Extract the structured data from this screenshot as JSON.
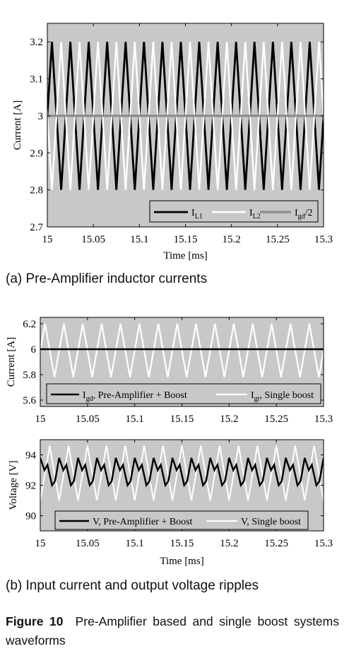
{
  "figure": {
    "label": "Figure 10",
    "caption": "Pre-Amplifier based and single boost systems waveforms"
  },
  "colors": {
    "plot_bg": "#c8c8c8",
    "series_dark": "#000000",
    "series_white": "#ffffff",
    "series_gray": "#8c8c8c"
  },
  "chart_data": [
    {
      "id": "a",
      "type": "line",
      "subcaption": "(a) Pre-Amplifier inductor currents",
      "xlabel": "Time [ms]",
      "ylabel": "Current [A]",
      "xlim": [
        15,
        15.3
      ],
      "ylim": [
        2.7,
        3.25
      ],
      "xticks": [
        "15",
        "15.05",
        "15.1",
        "15.15",
        "15.2",
        "15.25",
        "15.3"
      ],
      "yticks": [
        "2.7",
        "2.8",
        "2.9",
        "3",
        "3.1",
        "3.2"
      ],
      "legend_position": "bottom-right",
      "series": [
        {
          "name": "I_L1",
          "label_main": "I",
          "label_sub": "L1",
          "label_suffix": "",
          "shape": "triangle",
          "min": 2.8,
          "max": 3.2,
          "period_ms": 0.02,
          "phase_ms": 0.005,
          "color_key": "series_dark",
          "width": 2.8
        },
        {
          "name": "I_L2",
          "label_main": "I",
          "label_sub": "L2",
          "label_suffix": "",
          "shape": "triangle",
          "min": 2.8,
          "max": 3.2,
          "period_ms": 0.02,
          "phase_ms": 0.015,
          "color_key": "series_white",
          "width": 2.4
        },
        {
          "name": "I_gd/2",
          "label_main": "I",
          "label_sub": "gd",
          "label_suffix": "/2",
          "shape": "constant",
          "value": 3.0,
          "color_key": "series_gray",
          "width": 3.2
        }
      ]
    },
    {
      "id": "b1",
      "type": "line",
      "xlabel": "",
      "ylabel": "Current [A]",
      "xlim": [
        15,
        15.3
      ],
      "ylim": [
        5.55,
        6.25
      ],
      "xticks": [
        "15",
        "15.05",
        "15.1",
        "15.15",
        "15.2",
        "15.25",
        "15.3"
      ],
      "yticks": [
        "5.6",
        "5.8",
        "6",
        "6.2"
      ],
      "legend_position": "bottom",
      "series": [
        {
          "name": "I_gt, Single boost",
          "label_main": "I",
          "label_sub": "gt",
          "label_suffix": ", Single boost",
          "shape": "triangle",
          "min": 5.78,
          "max": 6.2,
          "period_ms": 0.02,
          "phase_ms": 0.005,
          "color_key": "series_white",
          "width": 2.2
        },
        {
          "name": "I_gd, Pre-Amplifier + Boost",
          "label_main": "I",
          "label_sub": "gd",
          "label_suffix": ", Pre-Amplifier + Boost",
          "shape": "constant",
          "value": 6.0,
          "color_key": "series_dark",
          "width": 2.6
        }
      ]
    },
    {
      "id": "b2",
      "type": "line",
      "subcaption": "(b) Input current and output voltage ripples",
      "xlabel": "Time [ms]",
      "ylabel": "Voltage [V]",
      "xlim": [
        15,
        15.3
      ],
      "ylim": [
        89,
        95
      ],
      "xticks": [
        "15",
        "15.05",
        "15.1",
        "15.15",
        "15.2",
        "15.25",
        "15.3"
      ],
      "yticks": [
        "90",
        "92",
        "94"
      ],
      "legend_position": "bottom",
      "series": [
        {
          "name": "V, Single boost",
          "label_main": "V, Single boost",
          "label_sub": "",
          "label_suffix": "",
          "shape": "triangle",
          "min": 91.0,
          "max": 94.6,
          "period_ms": 0.02,
          "phase_ms": 0.01,
          "color_key": "series_white",
          "width": 2.0
        },
        {
          "name": "V, Pre-Amplifier + Boost",
          "label_main": "V, Pre-Amplifier + Boost",
          "label_sub": "",
          "label_suffix": "",
          "shape": "double_ripple",
          "min": 92.0,
          "max": 93.8,
          "period_ms": 0.02,
          "phase_ms": 0.0,
          "color_key": "series_dark",
          "width": 2.4
        }
      ]
    }
  ]
}
